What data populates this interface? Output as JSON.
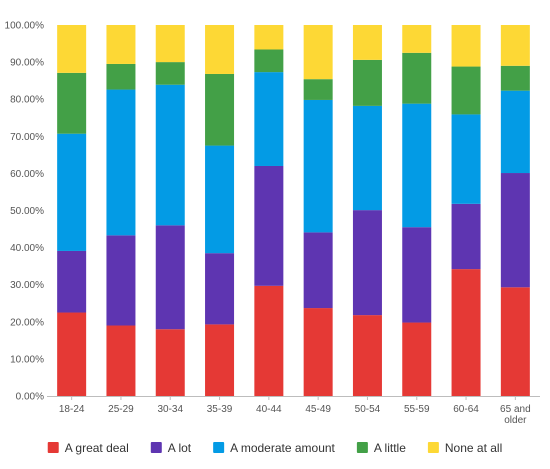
{
  "chart_data": {
    "type": "bar",
    "stacked": true,
    "normalized": true,
    "categories": [
      "18-24",
      "25-29",
      "30-34",
      "35-39",
      "40-44",
      "45-49",
      "50-54",
      "55-59",
      "60-64",
      "65 and older"
    ],
    "series": [
      {
        "name": "A great deal",
        "color": "#e53935",
        "values": [
          22.5,
          19.0,
          18.0,
          19.3,
          29.7,
          23.7,
          21.8,
          19.8,
          34.2,
          29.3
        ]
      },
      {
        "name": "A lot",
        "color": "#5e35b1",
        "values": [
          16.6,
          24.3,
          28.0,
          19.2,
          32.3,
          20.4,
          28.3,
          25.7,
          17.6,
          30.8
        ]
      },
      {
        "name": "A moderate amount",
        "color": "#039be5",
        "values": [
          31.6,
          39.3,
          37.9,
          29.0,
          25.3,
          35.7,
          28.1,
          33.3,
          24.1,
          22.2
        ]
      },
      {
        "name": "A little",
        "color": "#43a047",
        "values": [
          16.4,
          6.9,
          6.1,
          19.3,
          6.1,
          5.6,
          12.4,
          13.7,
          12.9,
          6.7
        ]
      },
      {
        "name": "None at all",
        "color": "#fdd835",
        "values": [
          12.9,
          10.5,
          10.0,
          13.2,
          6.6,
          14.6,
          9.4,
          7.5,
          11.2,
          11.0
        ]
      }
    ],
    "y_axis": {
      "min": 0,
      "max": 100,
      "tick_labels": [
        "0.00%",
        "10.00%",
        "20.00%",
        "30.00%",
        "40.00%",
        "50.00%",
        "60.00%",
        "70.00%",
        "80.00%",
        "90.00%",
        "100.00%"
      ]
    },
    "x_tick_labels": [
      [
        "18-24"
      ],
      [
        "25-29"
      ],
      [
        "30-34"
      ],
      [
        "35-39"
      ],
      [
        "40-44"
      ],
      [
        "45-49"
      ],
      [
        "50-54"
      ],
      [
        "55-59"
      ],
      [
        "60-64"
      ],
      [
        "65 and",
        "older"
      ]
    ],
    "grid": false,
    "legend_position": "bottom"
  }
}
